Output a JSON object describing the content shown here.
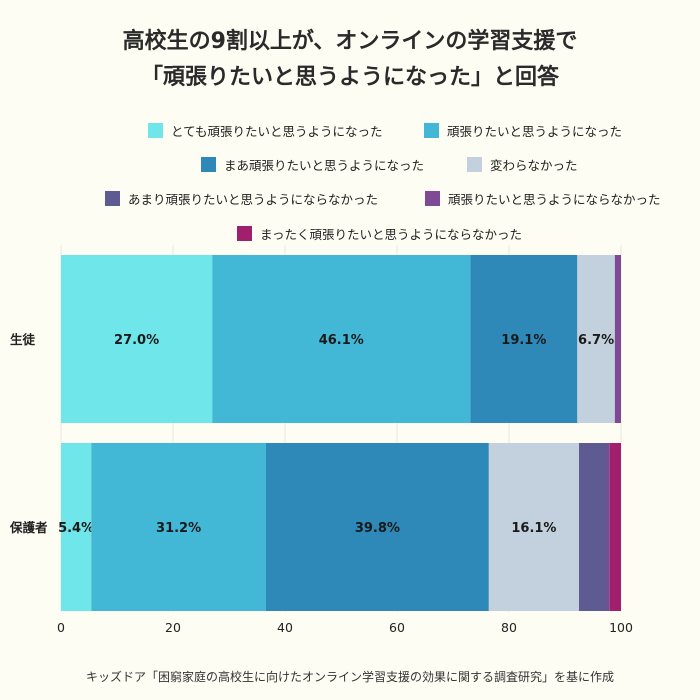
{
  "title_line1": "高校生の9割以上が、オンラインの学習支援で",
  "title_line2": "「頑張りたいと思うようになった」と回答",
  "source": "キッズドア「困窮家庭の高校生に向けたオンライン学習支援の効果に関する調査研究」を基に作成",
  "chart_data": {
    "type": "bar",
    "orientation": "horizontal-stacked",
    "categories": [
      "生徒",
      "保護者"
    ],
    "series": [
      {
        "name": "とても頑張りたいと思うようになった",
        "color": "#6ee6ea",
        "values": [
          27.0,
          5.4
        ],
        "labels": [
          "27.0%",
          "5.4%"
        ]
      },
      {
        "name": "頑張りたいと思うようになった",
        "color": "#43b8d6",
        "values": [
          46.1,
          31.2
        ],
        "labels": [
          "46.1%",
          "31.2%"
        ]
      },
      {
        "name": "まあ頑張りたいと思うようになった",
        "color": "#2e88b8",
        "values": [
          19.1,
          39.8
        ],
        "labels": [
          "19.1%",
          "39.8%"
        ]
      },
      {
        "name": "変わらなかった",
        "color": "#c3d0de",
        "values": [
          6.7,
          16.1
        ],
        "labels": [
          "6.7%",
          "16.1%"
        ]
      },
      {
        "name": "あまり頑張りたいと思うようにならなかった",
        "color": "#5e5a92",
        "values": [
          0,
          5.0
        ],
        "labels": [
          "",
          ""
        ]
      },
      {
        "name": "頑張りたいと思うようにならなかった",
        "color": "#7e4a96",
        "values": [
          1.1,
          0.5
        ],
        "labels": [
          "",
          ""
        ]
      },
      {
        "name": "まったく頑張りたいと思うようにならなかった",
        "color": "#a0206e",
        "values": [
          0,
          2.0
        ],
        "labels": [
          "",
          ""
        ]
      }
    ],
    "x_ticks": [
      "0",
      "20",
      "40",
      "60",
      "80",
      "100"
    ],
    "xlim": [
      0,
      100
    ],
    "grid": true,
    "legend_position": "top"
  }
}
